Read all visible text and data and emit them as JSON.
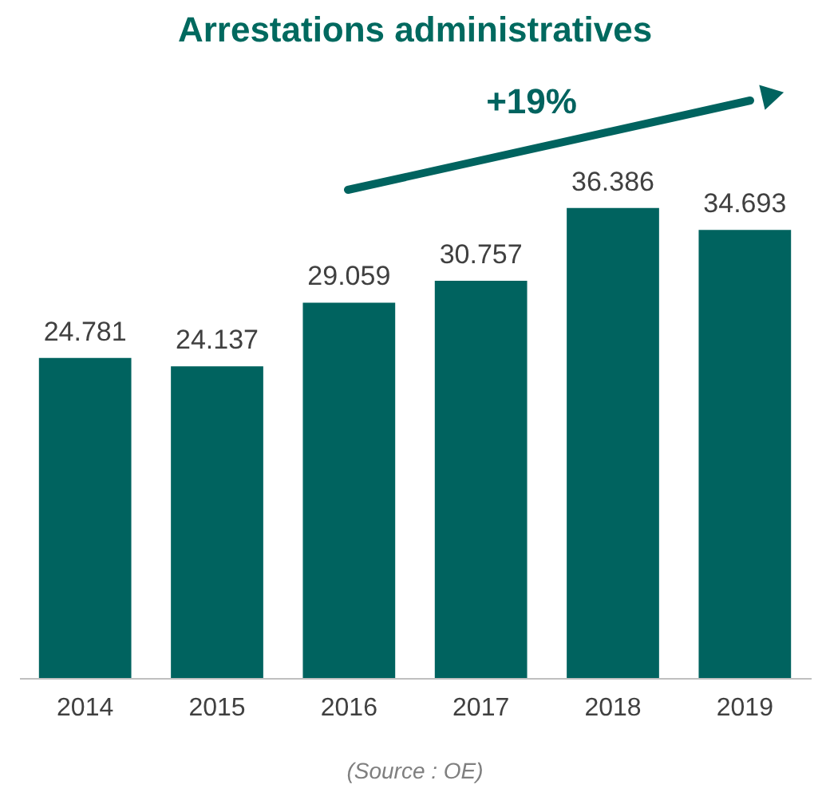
{
  "chart_data": {
    "type": "bar",
    "title": "Arrestations administratives",
    "categories": [
      "2014",
      "2015",
      "2016",
      "2017",
      "2018",
      "2019"
    ],
    "values": [
      24781,
      24137,
      29059,
      30757,
      36386,
      34693
    ],
    "value_labels": [
      "24.781",
      "24.137",
      "29.059",
      "30.757",
      "36.386",
      "34.693"
    ],
    "color": "#00635f",
    "annotations": [
      "+19%",
      "(Source : OE)"
    ]
  }
}
